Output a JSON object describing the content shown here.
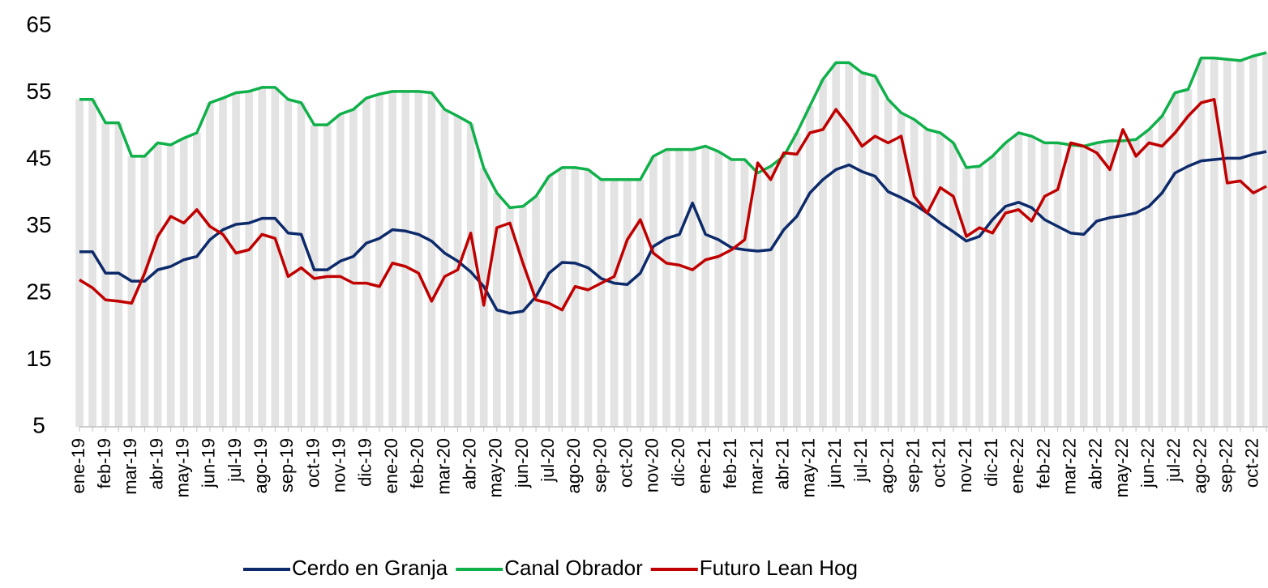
{
  "chart_data": {
    "type": "line",
    "categories": [
      "ene-19",
      null,
      "feb-19",
      null,
      "mar-19",
      null,
      "abr-19",
      null,
      "may-19",
      null,
      "jun-19",
      null,
      "jul-19",
      null,
      "ago-19",
      null,
      "sep-19",
      null,
      "oct-19",
      null,
      "nov-19",
      null,
      "dic-19",
      null,
      "ene-20",
      null,
      "feb-20",
      null,
      "mar-20",
      null,
      "abr-20",
      null,
      "may-20",
      null,
      "jun-20",
      null,
      "jul-20",
      null,
      "ago-20",
      null,
      "sep-20",
      null,
      "oct-20",
      null,
      "nov-20",
      null,
      "dic-20",
      null,
      "ene-21",
      null,
      "feb-21",
      null,
      "mar-21",
      null,
      "abr-21",
      null,
      "may-21",
      null,
      "jun-21",
      null,
      "jul-21",
      null,
      "ago-21",
      null,
      "sep-21",
      null,
      "oct-21",
      null,
      "nov-21",
      null,
      "dic-21",
      null,
      "ene-22",
      null,
      "feb-22",
      null,
      "mar-22",
      null,
      "abr-22",
      null,
      "may-22",
      null,
      "jun-22",
      null,
      "jul-22",
      null,
      "ago-22",
      null,
      "sep-22",
      null,
      "oct-22",
      null
    ],
    "series": [
      {
        "name": "Cerdo en Granja",
        "color": "#0d2a6b",
        "values": [
          31.2,
          31.2,
          28,
          28,
          26.8,
          26.8,
          28.5,
          29,
          30,
          30.5,
          33,
          34.5,
          35.3,
          35.5,
          36.2,
          36.2,
          34,
          33.8,
          28.5,
          28.5,
          29.8,
          30.5,
          32.5,
          33.2,
          34.5,
          34.3,
          33.8,
          32.8,
          31,
          29.8,
          28.2,
          26,
          22.5,
          22,
          22.3,
          24.5,
          28,
          29.6,
          29.5,
          28.8,
          27.2,
          26.5,
          26.3,
          28,
          32,
          33.2,
          33.8,
          38.5,
          33.8,
          33,
          31.8,
          31.5,
          31.3,
          31.5,
          34.5,
          36.5,
          40,
          42,
          43.5,
          44.2,
          43.2,
          42.5,
          40.2,
          39.3,
          38.3,
          37,
          35.5,
          34.2,
          32.8,
          33.5,
          36,
          38,
          38.6,
          37.8,
          36,
          35,
          34,
          33.8,
          35.8,
          36.3,
          36.6,
          37,
          38,
          40,
          43,
          44,
          44.8,
          45,
          45.2,
          45.2,
          45.8,
          46.2
        ]
      },
      {
        "name": "Canal Obrador",
        "color": "#10b04a",
        "values": [
          54,
          54,
          50.5,
          50.5,
          45.5,
          45.5,
          47.5,
          47.2,
          48.2,
          49,
          53.5,
          54.2,
          55,
          55.2,
          55.8,
          55.8,
          54,
          53.5,
          50.2,
          50.2,
          51.8,
          52.5,
          54.2,
          54.8,
          55.2,
          55.2,
          55.2,
          55,
          52.5,
          51.5,
          50.4,
          43.7,
          40,
          37.8,
          38,
          39.5,
          42.5,
          43.8,
          43.8,
          43.5,
          42,
          42,
          42,
          42,
          45.5,
          46.5,
          46.5,
          46.5,
          47,
          46.2,
          45,
          45,
          43,
          44,
          45.5,
          49,
          53,
          57,
          59.5,
          59.5,
          58,
          57.5,
          54,
          52,
          51,
          49.5,
          49,
          47.5,
          43.8,
          44,
          45.5,
          47.5,
          49,
          48.5,
          47.5,
          47.5,
          47.2,
          47,
          47.5,
          47.8,
          47.8,
          48,
          49.5,
          51.5,
          55,
          55.5,
          60.2,
          60.2,
          60,
          59.8,
          60.5,
          61
        ]
      },
      {
        "name": "Futuro Lean Hog",
        "color": "#c00000",
        "values": [
          27,
          25.8,
          24,
          23.8,
          23.5,
          28,
          33.5,
          36.5,
          35.5,
          37.5,
          35,
          33.8,
          31,
          31.5,
          33.8,
          33.2,
          27.5,
          28.8,
          27.2,
          27.5,
          27.5,
          26.5,
          26.5,
          26,
          29.5,
          29,
          28,
          23.8,
          27.5,
          28.5,
          34,
          23.2,
          34.8,
          35.5,
          29.5,
          24,
          23.5,
          22.5,
          26,
          25.5,
          26.5,
          27.5,
          33,
          36,
          31,
          29.5,
          29.2,
          28.5,
          30,
          30.5,
          31.5,
          33,
          44.5,
          42,
          46,
          45.8,
          49,
          49.5,
          52.5,
          50,
          47,
          48.5,
          47.5,
          48.5,
          39.5,
          37,
          40.8,
          39.5,
          33.5,
          34.8,
          34,
          37,
          37.5,
          35.8,
          39.5,
          40.5,
          47.5,
          47,
          46,
          43.5,
          49.5,
          45.5,
          47.5,
          47,
          49,
          51.5,
          53.5,
          54,
          41.5,
          41.8,
          40,
          41
        ]
      }
    ],
    "ylim": [
      5,
      65
    ],
    "yticks": [
      5,
      15,
      25,
      35,
      45,
      55,
      65
    ]
  }
}
